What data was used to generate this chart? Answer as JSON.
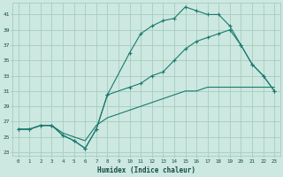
{
  "xlabel": "Humidex (Indice chaleur)",
  "bg_color": "#cce8e0",
  "grid_color": "#a8ccbf",
  "line_color": "#1a7a6e",
  "xlim": [
    -0.5,
    23.5
  ],
  "ylim": [
    22.5,
    42.5
  ],
  "yticks": [
    23,
    25,
    27,
    29,
    31,
    33,
    35,
    37,
    39,
    41
  ],
  "xticks": [
    0,
    1,
    2,
    3,
    4,
    5,
    6,
    7,
    8,
    9,
    10,
    11,
    12,
    13,
    14,
    15,
    16,
    17,
    18,
    19,
    20,
    21,
    22,
    23
  ],
  "line1_x": [
    0,
    1,
    2,
    3,
    4,
    5,
    6,
    7,
    8,
    10,
    11,
    12,
    13,
    14,
    15,
    16,
    17,
    18,
    19,
    20,
    21,
    22,
    23
  ],
  "line1_y": [
    26,
    26,
    26.5,
    26.5,
    25.2,
    24.5,
    23.5,
    26,
    30.5,
    36.0,
    38.5,
    39.5,
    40.2,
    40.5,
    42.0,
    41.5,
    41.0,
    41.0,
    39.5,
    37.0,
    34.5,
    33.0,
    31.0
  ],
  "line2_x": [
    0,
    1,
    2,
    3,
    4,
    5,
    6,
    7,
    8,
    10,
    11,
    12,
    13,
    14,
    15,
    16,
    17,
    18,
    19,
    20,
    21,
    22,
    23
  ],
  "line2_y": [
    26,
    26,
    26.5,
    26.5,
    25.2,
    24.5,
    23.5,
    26,
    30.5,
    31.5,
    32.0,
    33.0,
    33.5,
    35.0,
    36.5,
    37.5,
    38.0,
    38.5,
    39.0,
    37.0,
    34.5,
    33.0,
    31.0
  ],
  "line3_x": [
    0,
    1,
    2,
    3,
    4,
    5,
    6,
    7,
    8,
    9,
    10,
    11,
    12,
    13,
    14,
    15,
    16,
    17,
    18,
    19,
    20,
    21,
    22,
    23
  ],
  "line3_y": [
    26.0,
    26.0,
    26.5,
    26.5,
    25.5,
    25.0,
    24.5,
    26.5,
    27.5,
    28.0,
    28.5,
    29.0,
    29.5,
    30.0,
    30.5,
    31.0,
    31.0,
    31.5,
    31.5,
    31.5,
    31.5,
    31.5,
    31.5,
    31.5
  ]
}
